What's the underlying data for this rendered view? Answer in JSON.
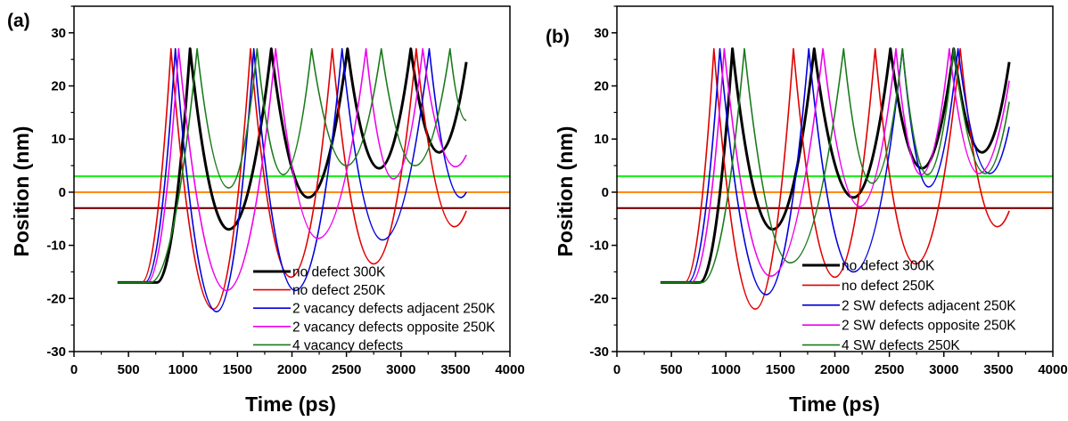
{
  "chart_data": [
    {
      "type": "line",
      "panel_label": "(a)",
      "xlabel": "Time (ps)",
      "ylabel": "Position (nm)",
      "xlim": [
        0,
        4000
      ],
      "ylim": [
        -30,
        35
      ],
      "xticks": [
        "0",
        "500",
        "1000",
        "1500",
        "2000",
        "2500",
        "3000",
        "3500",
        "4000"
      ],
      "yticks": [
        "-30",
        "-20",
        "-10",
        "0",
        "10",
        "20",
        "30"
      ],
      "grid": false,
      "legend_position": "bottom-right",
      "reference_lines": [
        {
          "y": 3,
          "color": "#22ee22"
        },
        {
          "y": 0,
          "color": "#ff8c1a"
        },
        {
          "y": -3,
          "color": "#7a0000"
        }
      ],
      "series": [
        {
          "name": "no defect 300K",
          "color": "#000000",
          "width": 3,
          "points": [
            [
              400,
              -17
            ],
            [
              760,
              -17
            ],
            [
              1065,
              27
            ],
            [
              1420,
              -7
            ],
            [
              1810,
              27
            ],
            [
              2150,
              -1
            ],
            [
              2510,
              27
            ],
            [
              2800,
              4.5
            ],
            [
              3090,
              27
            ],
            [
              3350,
              7.5
            ],
            [
              3600,
              24.5
            ]
          ]
        },
        {
          "name": "no defect 250K",
          "color": "#e00000",
          "width": 1.6,
          "points": [
            [
              400,
              -17
            ],
            [
              620,
              -17
            ],
            [
              890,
              27
            ],
            [
              1280,
              -22
            ],
            [
              1620,
              27
            ],
            [
              1990,
              -16
            ],
            [
              2370,
              27
            ],
            [
              2750,
              -13.5
            ],
            [
              3140,
              27
            ],
            [
              3490,
              -6.5
            ],
            [
              3600,
              -3.5
            ]
          ]
        },
        {
          "name": "2 vacancy defects adjacent 250K",
          "color": "#0000dd",
          "width": 1.6,
          "points": [
            [
              400,
              -17
            ],
            [
              650,
              -17
            ],
            [
              930,
              27
            ],
            [
              1310,
              -22.5
            ],
            [
              1650,
              27
            ],
            [
              2030,
              -18.5
            ],
            [
              2460,
              27
            ],
            [
              2830,
              -9
            ],
            [
              3260,
              27
            ],
            [
              3550,
              -1
            ],
            [
              3600,
              0
            ]
          ]
        },
        {
          "name": "2 vacancy defects opposite 250K",
          "color": "#ee00ee",
          "width": 1.6,
          "points": [
            [
              400,
              -17
            ],
            [
              670,
              -17
            ],
            [
              960,
              27
            ],
            [
              1400,
              -18.5
            ],
            [
              1850,
              27
            ],
            [
              2240,
              -8.7
            ],
            [
              2680,
              27
            ],
            [
              2930,
              2.5
            ],
            [
              3200,
              27
            ],
            [
              3500,
              4.8
            ],
            [
              3600,
              7
            ]
          ]
        },
        {
          "name": "4 vacancy defects",
          "color": "#1a7a1a",
          "width": 1.6,
          "points": [
            [
              400,
              -17
            ],
            [
              700,
              -17
            ],
            [
              1130,
              27
            ],
            [
              1420,
              0.8
            ],
            [
              1680,
              27
            ],
            [
              1920,
              3.3
            ],
            [
              2180,
              27
            ],
            [
              2500,
              5
            ],
            [
              2820,
              27
            ],
            [
              3130,
              5
            ],
            [
              3450,
              27
            ],
            [
              3600,
              13.5
            ]
          ]
        }
      ]
    },
    {
      "type": "line",
      "panel_label": "(b)",
      "xlabel": "Time (ps)",
      "ylabel": "Position (nm)",
      "xlim": [
        0,
        4000
      ],
      "ylim": [
        -30,
        35
      ],
      "xticks": [
        "0",
        "500",
        "1000",
        "1500",
        "2000",
        "2500",
        "3000",
        "3500",
        "4000"
      ],
      "yticks": [
        "-30",
        "-20",
        "-10",
        "0",
        "10",
        "20",
        "30"
      ],
      "grid": false,
      "legend_position": "bottom-right",
      "reference_lines": [
        {
          "y": 3,
          "color": "#22ee22"
        },
        {
          "y": 0,
          "color": "#ff8c1a"
        },
        {
          "y": -3,
          "color": "#7a0000"
        }
      ],
      "series": [
        {
          "name": "no defect 300K",
          "color": "#000000",
          "width": 3,
          "points": [
            [
              400,
              -17
            ],
            [
              760,
              -17
            ],
            [
              1060,
              27
            ],
            [
              1430,
              -7
            ],
            [
              1810,
              27
            ],
            [
              2170,
              -1
            ],
            [
              2510,
              27
            ],
            [
              2800,
              4.5
            ],
            [
              3090,
              27
            ],
            [
              3350,
              7.5
            ],
            [
              3600,
              24.5
            ]
          ]
        },
        {
          "name": "no defect 250K",
          "color": "#e00000",
          "width": 1.6,
          "points": [
            [
              400,
              -17
            ],
            [
              620,
              -17
            ],
            [
              890,
              27
            ],
            [
              1270,
              -22
            ],
            [
              1620,
              27
            ],
            [
              2000,
              -16
            ],
            [
              2370,
              27
            ],
            [
              2740,
              -13.5
            ],
            [
              3150,
              27
            ],
            [
              3490,
              -6.5
            ],
            [
              3600,
              -3.5
            ]
          ]
        },
        {
          "name": "2 SW defects adjacent 250K",
          "color": "#0000dd",
          "width": 1.6,
          "points": [
            [
              400,
              -17
            ],
            [
              650,
              -17
            ],
            [
              945,
              27
            ],
            [
              1370,
              -19.3
            ],
            [
              1760,
              27
            ],
            [
              2170,
              -15
            ],
            [
              2620,
              27
            ],
            [
              2860,
              1
            ],
            [
              3130,
              27
            ],
            [
              3420,
              3.5
            ],
            [
              3600,
              12.3
            ]
          ]
        },
        {
          "name": "2 SW defects opposite 250K",
          "color": "#ee00ee",
          "width": 1.6,
          "points": [
            [
              400,
              -17
            ],
            [
              680,
              -17
            ],
            [
              985,
              27
            ],
            [
              1410,
              -15.8
            ],
            [
              1890,
              27
            ],
            [
              2230,
              -2.7
            ],
            [
              2560,
              27
            ],
            [
              2790,
              3.3
            ],
            [
              3050,
              27
            ],
            [
              3320,
              3.5
            ],
            [
              3600,
              21
            ]
          ]
        },
        {
          "name": "4 SW defects 250K",
          "color": "#1a7a1a",
          "width": 1.6,
          "points": [
            [
              400,
              -17
            ],
            [
              780,
              -17
            ],
            [
              1170,
              27
            ],
            [
              1590,
              -13.3
            ],
            [
              2080,
              27
            ],
            [
              2340,
              1.7
            ],
            [
              2620,
              27
            ],
            [
              2850,
              3.3
            ],
            [
              3090,
              27
            ],
            [
              3380,
              3.5
            ],
            [
              3600,
              17
            ]
          ]
        }
      ]
    }
  ]
}
